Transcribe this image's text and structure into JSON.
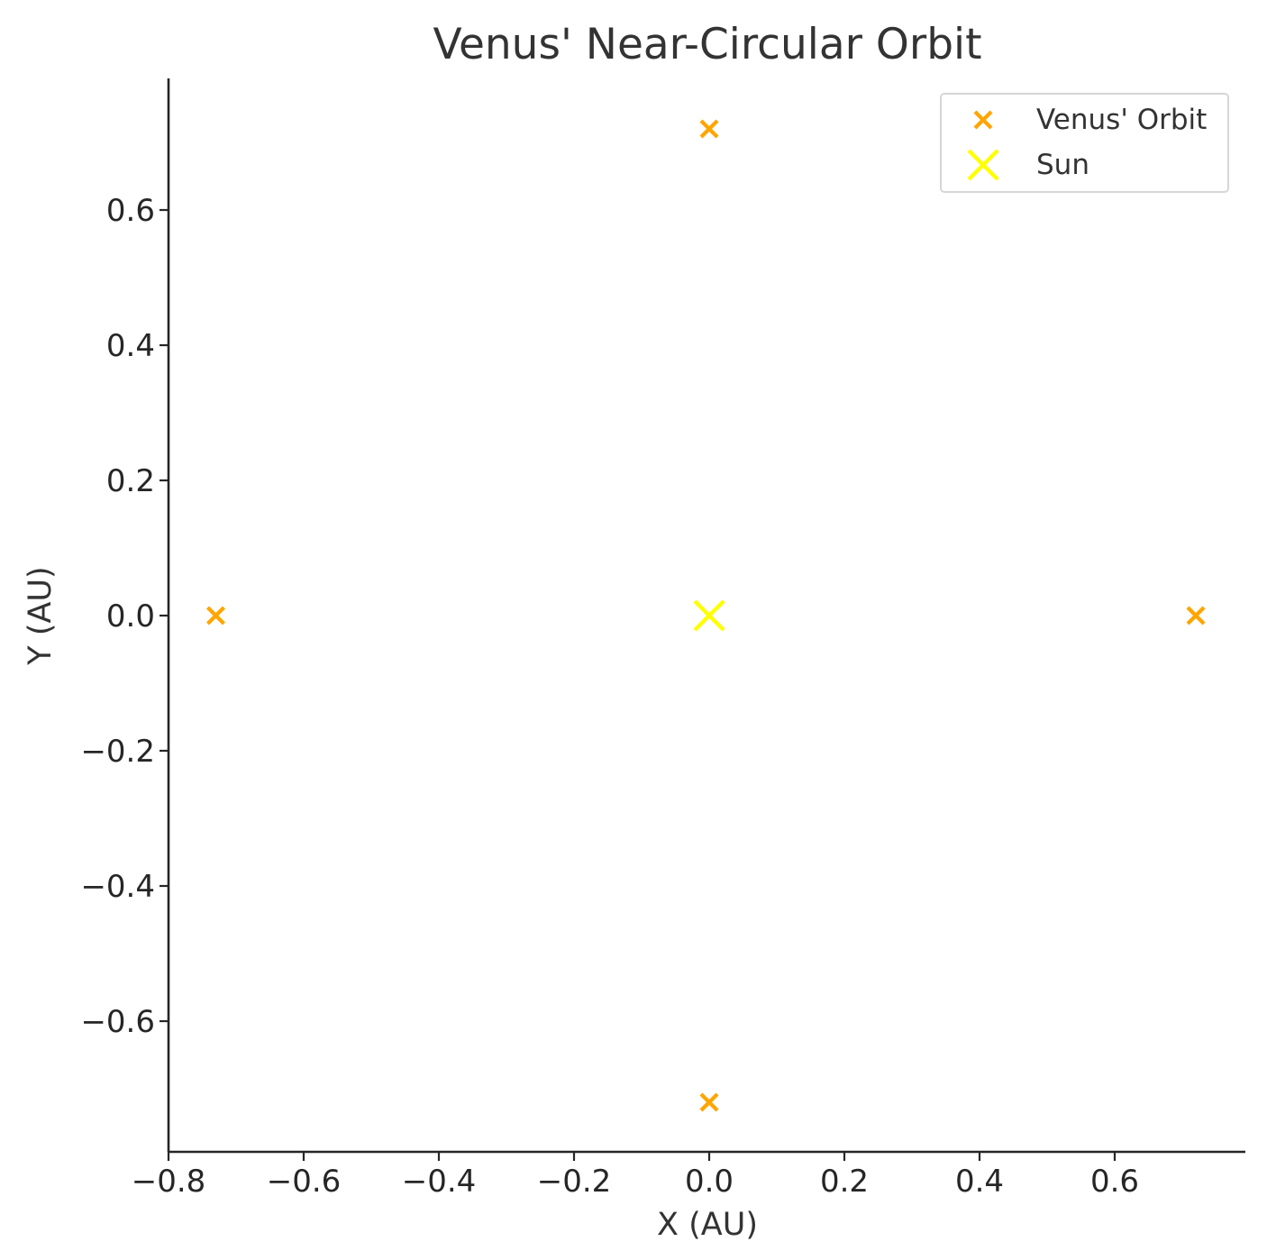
{
  "chart_data": {
    "type": "scatter",
    "title": "Venus' Near-Circular Orbit",
    "xlabel": "X (AU)",
    "ylabel": "Y (AU)",
    "xlim": [
      -0.8,
      0.79
    ],
    "ylim": [
      -0.79,
      0.79
    ],
    "xticks": [
      {
        "value": -0.8,
        "label": "−0.8"
      },
      {
        "value": -0.6,
        "label": "−0.6"
      },
      {
        "value": -0.4,
        "label": "−0.4"
      },
      {
        "value": -0.2,
        "label": "−0.2"
      },
      {
        "value": 0.0,
        "label": "0.0"
      },
      {
        "value": 0.2,
        "label": "0.2"
      },
      {
        "value": 0.4,
        "label": "0.4"
      },
      {
        "value": 0.6,
        "label": "0.6"
      }
    ],
    "yticks": [
      {
        "value": -0.6,
        "label": "−0.6"
      },
      {
        "value": -0.4,
        "label": "−0.4"
      },
      {
        "value": -0.2,
        "label": "−0.2"
      },
      {
        "value": 0.0,
        "label": "0.0"
      },
      {
        "value": 0.2,
        "label": "0.2"
      },
      {
        "value": 0.4,
        "label": "0.4"
      },
      {
        "value": 0.6,
        "label": "0.6"
      }
    ],
    "grid": false,
    "legend_position": "top-right",
    "series": [
      {
        "name": "Venus' Orbit",
        "marker": "x",
        "color": "#FFA500",
        "points": [
          {
            "x": 0.72,
            "y": 0.0
          },
          {
            "x": 0.0,
            "y": 0.72
          },
          {
            "x": -0.73,
            "y": 0.0
          },
          {
            "x": 0.0,
            "y": -0.72
          }
        ]
      },
      {
        "name": "Sun",
        "marker": "x",
        "color": "#FFFF00",
        "points": [
          {
            "x": 0.0,
            "y": 0.0
          }
        ]
      }
    ]
  }
}
